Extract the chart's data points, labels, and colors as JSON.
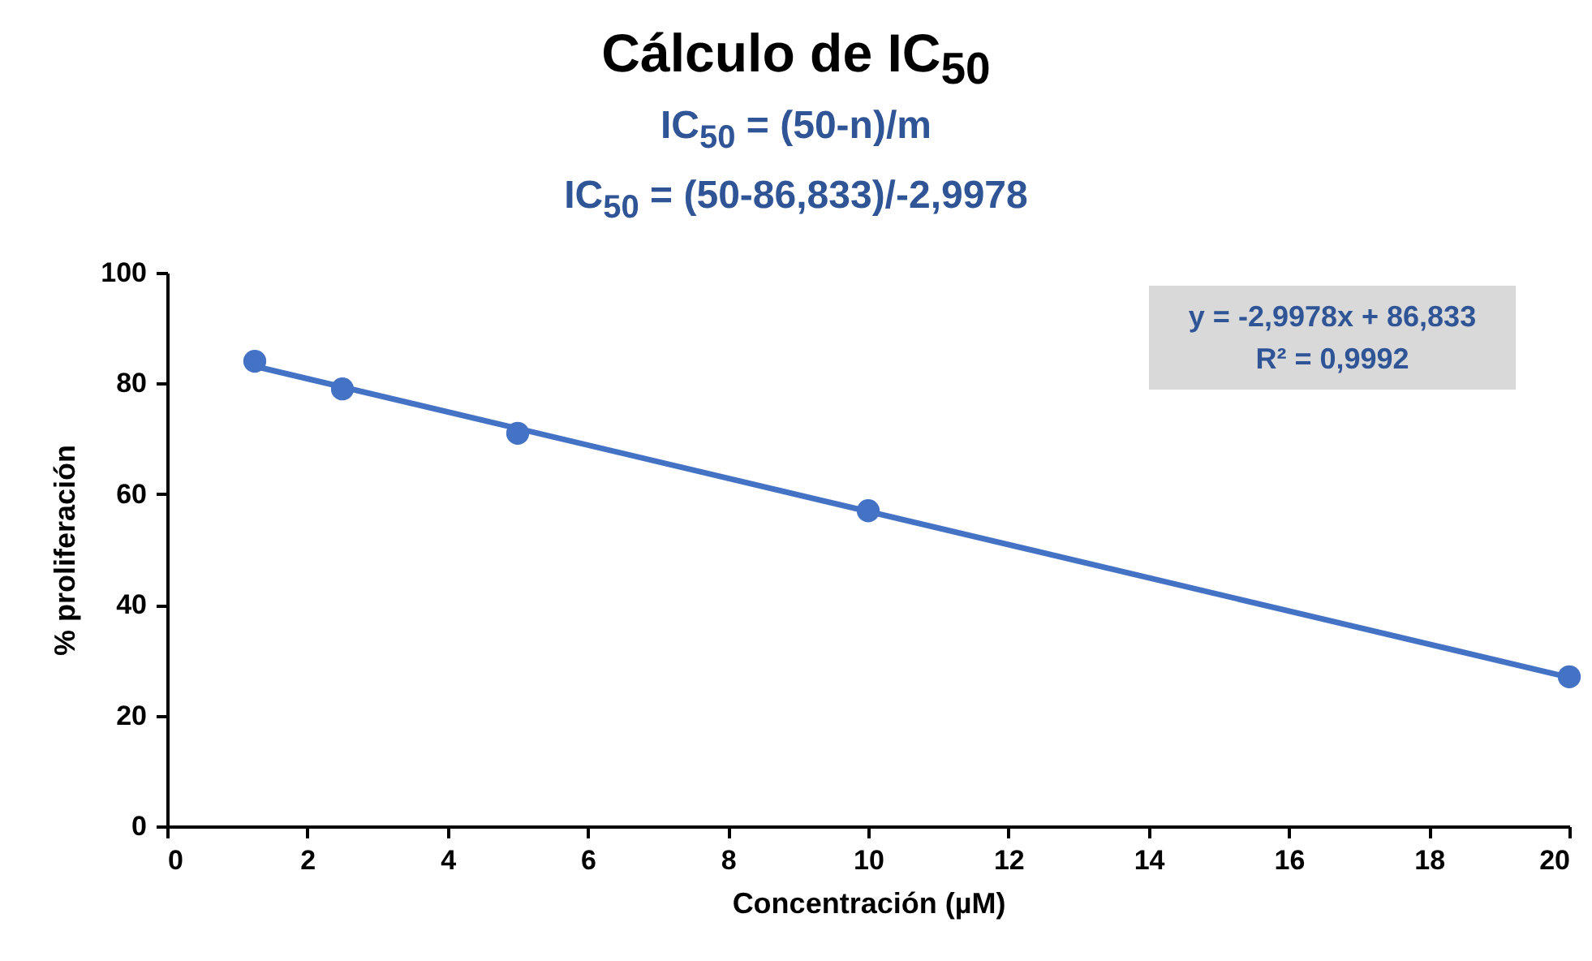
{
  "chart_data": {
    "type": "scatter",
    "title": "Cálculo de IC$_{50}$",
    "subtitle": "IC$_{50}$ = (50-n)/m\nIC$_{50}$ = (50-86,833)/-2,9978",
    "xlabel": "Concentración (µM)",
    "ylabel": "% proliferación",
    "annotations": [
      "y = -2,9978x + 86,833",
      "R² = 0,9992"
    ],
    "series": [
      {
        "type": "scatter",
        "x": [
          1.25,
          2.5,
          5,
          10,
          20
        ],
        "values": [
          84,
          79,
          71,
          57,
          27
        ],
        "color": "#4472c4",
        "marker": "circle"
      },
      {
        "type": "line",
        "x": [
          1.25,
          20
        ],
        "values": [
          83.1,
          26.9
        ],
        "color": "#4472c4",
        "marker": "none",
        "line_style": "solid"
      }
    ],
    "xlim": [
      0,
      20
    ],
    "xticks": [
      0,
      2,
      4,
      6,
      8,
      10,
      12,
      14,
      16,
      18,
      20
    ],
    "ylim": [
      0,
      100
    ],
    "yticks": [
      0,
      20,
      40,
      60,
      80,
      100
    ],
    "grid": false
  }
}
